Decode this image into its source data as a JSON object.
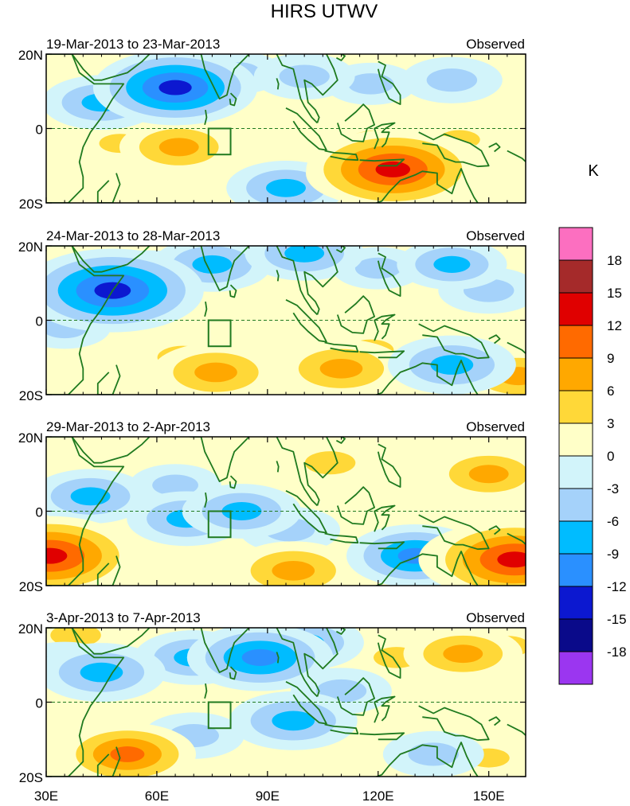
{
  "chart_data": {
    "type": "heatmap",
    "title": "HIRS UTWV",
    "units_label": "K",
    "x_axis": {
      "ticks": [
        30,
        60,
        90,
        120,
        150
      ],
      "tick_labels": [
        "30E",
        "60E",
        "90E",
        "120E",
        "150E"
      ],
      "range": [
        30,
        160
      ]
    },
    "y_axis": {
      "ticks": [
        20,
        0,
        -20
      ],
      "tick_labels": [
        "20N",
        "0",
        "20S"
      ],
      "range": [
        -20,
        20
      ]
    },
    "equator_line": "dashed",
    "target_box": {
      "lon": [
        74,
        80
      ],
      "lat": [
        -7,
        0
      ]
    },
    "colorbar": {
      "labels": [
        "18",
        "15",
        "12",
        "9",
        "6",
        "3",
        "0",
        "-3",
        "-6",
        "-9",
        "-12",
        "-15",
        "-18"
      ],
      "levels": [
        18,
        15,
        12,
        9,
        6,
        3,
        0,
        -3,
        -6,
        -9,
        -12,
        -15,
        -18
      ],
      "colors": [
        "#fc6fc0",
        "#a52a2a",
        "#e00000",
        "#ff6a00",
        "#ffa800",
        "#ffd838",
        "#ffffc8",
        "#d2f4fa",
        "#a5d2fa",
        "#00bcff",
        "#2a90ff",
        "#0c18d0",
        "#0a0a8a",
        "#9b36f0"
      ]
    },
    "panels": [
      {
        "date_range": "19-Mar-2013 to 23-Mar-2013",
        "label": "Observed",
        "anomaly_centers": [
          {
            "lon": 45,
            "lat": 7,
            "value": -7
          },
          {
            "lon": 62,
            "lat": 10,
            "value": -9
          },
          {
            "lon": 65,
            "lat": 11,
            "value": -12
          },
          {
            "lon": 82,
            "lat": 15,
            "value": -4
          },
          {
            "lon": 100,
            "lat": 14,
            "value": -5
          },
          {
            "lon": 118,
            "lat": 12,
            "value": -4
          },
          {
            "lon": 140,
            "lat": 13,
            "value": -5
          },
          {
            "lon": 66,
            "lat": -5,
            "value": 7
          },
          {
            "lon": 50,
            "lat": -4,
            "value": 3
          },
          {
            "lon": 95,
            "lat": -16,
            "value": -7
          },
          {
            "lon": 120,
            "lat": -5,
            "value": 6
          },
          {
            "lon": 124,
            "lat": -11,
            "value": 13
          },
          {
            "lon": 131,
            "lat": -11,
            "value": 11
          },
          {
            "lon": 119,
            "lat": -12,
            "value": 9
          },
          {
            "lon": 142,
            "lat": -3,
            "value": 3
          },
          {
            "lon": 155,
            "lat": 5,
            "value": 2
          }
        ]
      },
      {
        "date_range": "24-Mar-2013 to 28-Mar-2013",
        "label": "Observed",
        "anomaly_centers": [
          {
            "lon": 48,
            "lat": 8,
            "value": -14
          },
          {
            "lon": 40,
            "lat": 10,
            "value": -7
          },
          {
            "lon": 58,
            "lat": 12,
            "value": -6
          },
          {
            "lon": 75,
            "lat": 15,
            "value": -7
          },
          {
            "lon": 100,
            "lat": 18,
            "value": -7
          },
          {
            "lon": 140,
            "lat": 15,
            "value": -6
          },
          {
            "lon": 120,
            "lat": 14,
            "value": -4
          },
          {
            "lon": 150,
            "lat": 8,
            "value": -5
          },
          {
            "lon": 67,
            "lat": -10,
            "value": 5
          },
          {
            "lon": 76,
            "lat": -14,
            "value": 8
          },
          {
            "lon": 110,
            "lat": -13,
            "value": 8
          },
          {
            "lon": 118,
            "lat": -8,
            "value": 4
          },
          {
            "lon": 140,
            "lat": -12,
            "value": -8
          },
          {
            "lon": 158,
            "lat": -15,
            "value": 7
          },
          {
            "lon": 35,
            "lat": -2,
            "value": -4
          }
        ]
      },
      {
        "date_range": "29-Mar-2013 to 2-Apr-2013",
        "label": "Observed",
        "anomaly_centers": [
          {
            "lon": 42,
            "lat": 4,
            "value": -7
          },
          {
            "lon": 68,
            "lat": -2,
            "value": -7
          },
          {
            "lon": 83,
            "lat": 0,
            "value": -7
          },
          {
            "lon": 96,
            "lat": -5,
            "value": -5
          },
          {
            "lon": 65,
            "lat": 7,
            "value": -4
          },
          {
            "lon": 107,
            "lat": 13,
            "value": 5
          },
          {
            "lon": 150,
            "lat": 10,
            "value": 7
          },
          {
            "lon": 130,
            "lat": 5,
            "value": 2
          },
          {
            "lon": 97,
            "lat": -16,
            "value": 8
          },
          {
            "lon": 130,
            "lat": -12,
            "value": -9
          },
          {
            "lon": 152,
            "lat": -13,
            "value": 11
          },
          {
            "lon": 157,
            "lat": -13,
            "value": 13
          },
          {
            "lon": 31,
            "lat": -12,
            "value": 13
          },
          {
            "lon": 36,
            "lat": -14,
            "value": 6
          }
        ]
      },
      {
        "date_range": "3-Apr-2013 to 7-Apr-2013",
        "label": "Observed",
        "anomaly_centers": [
          {
            "lon": 38,
            "lat": 18,
            "value": 5
          },
          {
            "lon": 35,
            "lat": 10,
            "value": -5
          },
          {
            "lon": 45,
            "lat": 8,
            "value": -8
          },
          {
            "lon": 70,
            "lat": 12,
            "value": -7
          },
          {
            "lon": 88,
            "lat": 12,
            "value": -10
          },
          {
            "lon": 100,
            "lat": 16,
            "value": -7
          },
          {
            "lon": 97,
            "lat": -5,
            "value": -8
          },
          {
            "lon": 110,
            "lat": 3,
            "value": -5
          },
          {
            "lon": 70,
            "lat": -9,
            "value": -5
          },
          {
            "lon": 48,
            "lat": -12,
            "value": 7
          },
          {
            "lon": 52,
            "lat": -14,
            "value": 9
          },
          {
            "lon": 143,
            "lat": 13,
            "value": 7
          },
          {
            "lon": 125,
            "lat": 12,
            "value": 4
          },
          {
            "lon": 155,
            "lat": 15,
            "value": 4
          },
          {
            "lon": 135,
            "lat": -14,
            "value": -5
          },
          {
            "lon": 120,
            "lat": -3,
            "value": 2
          },
          {
            "lon": 150,
            "lat": -15,
            "value": 3
          }
        ]
      }
    ]
  }
}
